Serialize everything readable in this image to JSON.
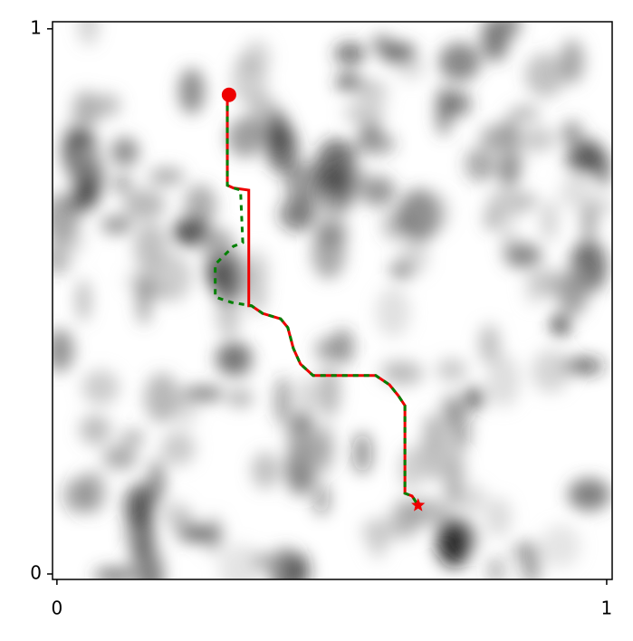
{
  "chart_data": {
    "type": "line",
    "xlim": [
      -0.008,
      1.01
    ],
    "ylim": [
      -0.01,
      1.013
    ],
    "xticks": [
      0,
      1
    ],
    "yticks": [
      0,
      1
    ],
    "series": [
      {
        "name": "red",
        "color": "#ee0000",
        "x": [
          0.31,
          0.31,
          0.321,
          0.349,
          0.349,
          0.354,
          0.374,
          0.407,
          0.42,
          0.43,
          0.443,
          0.466,
          0.58,
          0.605,
          0.621,
          0.633,
          0.633,
          0.646,
          0.657
        ],
        "values": [
          0.879,
          0.713,
          0.708,
          0.704,
          0.492,
          0.492,
          0.478,
          0.468,
          0.452,
          0.414,
          0.385,
          0.364,
          0.364,
          0.347,
          0.327,
          0.309,
          0.148,
          0.143,
          0.126
        ]
      },
      {
        "name": "green",
        "color": "#008000",
        "x": [
          0.31,
          0.31,
          0.321,
          0.334,
          0.338,
          0.321,
          0.288,
          0.288,
          0.318,
          0.354,
          0.374,
          0.407,
          0.42,
          0.43,
          0.443,
          0.466,
          0.58,
          0.605,
          0.621,
          0.633,
          0.633,
          0.646,
          0.657
        ],
        "values": [
          0.879,
          0.713,
          0.708,
          0.704,
          0.608,
          0.601,
          0.568,
          0.508,
          0.498,
          0.492,
          0.478,
          0.468,
          0.452,
          0.414,
          0.385,
          0.364,
          0.364,
          0.347,
          0.327,
          0.309,
          0.148,
          0.143,
          0.126
        ]
      }
    ],
    "start": {
      "x": 0.313,
      "y": 0.879,
      "color": "#ee0000"
    },
    "goal": {
      "x": 0.657,
      "y": 0.126,
      "color": "#ee0000"
    }
  }
}
